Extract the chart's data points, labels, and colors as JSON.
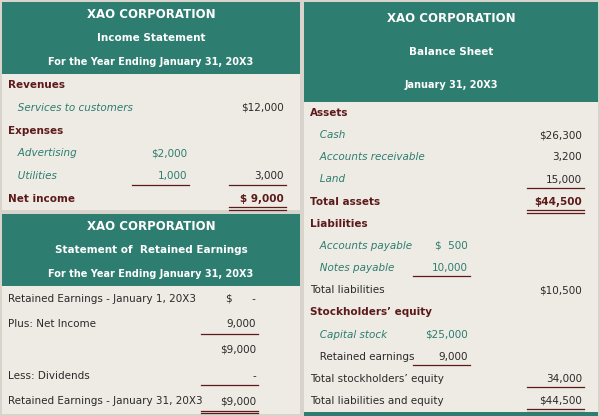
{
  "fig_w": 6.0,
  "fig_h": 4.16,
  "fig_bg": "#d8d4cc",
  "header_bg": "#2d7d70",
  "body_bg": "#eeeae4",
  "bold_col": "#5c1a1a",
  "italic_col": "#2d7d70",
  "normal_col": "#2a2a2a",
  "header_white": "#ffffff",
  "income_statement": {
    "titles": [
      "XAO CORPORATION",
      "Income Statement",
      "For the Year Ending January 31, 20X3"
    ],
    "title_sizes": [
      8.5,
      7.5,
      7.0
    ],
    "rows": [
      {
        "label": "Revenues",
        "c1": "",
        "c2": "",
        "style": "bold"
      },
      {
        "label": "   Services to customers",
        "c1": "",
        "c2": "$12,000",
        "style": "italic"
      },
      {
        "label": "Expenses",
        "c1": "",
        "c2": "",
        "style": "bold"
      },
      {
        "label": "   Advertising",
        "c1": "$2,000",
        "c2": "",
        "style": "italic"
      },
      {
        "label": "   Utilities",
        "c1": "1,000",
        "c2": "3,000",
        "style": "italic",
        "ul_c1": true,
        "ul_c2": true
      },
      {
        "label": "Net income",
        "c1": "",
        "c2": "$ 9,000",
        "style": "bold",
        "dul_c2": true
      }
    ]
  },
  "retained_earnings": {
    "titles": [
      "XAO CORPORATION",
      "Statement of  Retained Earnings",
      "For the Year Ending January 31, 20X3"
    ],
    "title_sizes": [
      8.5,
      7.5,
      7.0
    ],
    "rows": [
      {
        "label": "Retained Earnings - January 1, 20X3",
        "c1": "$      -",
        "c2": "",
        "style": "normal"
      },
      {
        "label": "Plus: Net Income",
        "c1": "9,000",
        "c2": "",
        "style": "normal",
        "ul_c1": true
      },
      {
        "label": "",
        "c1": "$9,000",
        "c2": "",
        "style": "normal"
      },
      {
        "label": "Less: Dividends",
        "c1": "-",
        "c2": "",
        "style": "normal",
        "ul_c1": true
      },
      {
        "label": "Retained Earnings - January 31, 20X3",
        "c1": "$9,000",
        "c2": "",
        "style": "normal",
        "dul_c1": true
      }
    ]
  },
  "balance_sheet": {
    "titles": [
      "XAO CORPORATION",
      "Balance Sheet",
      "January 31, 20X3"
    ],
    "title_sizes": [
      8.5,
      7.5,
      7.0
    ],
    "rows": [
      {
        "label": "Assets",
        "c1": "",
        "c2": "",
        "style": "bold"
      },
      {
        "label": "   Cash",
        "c1": "",
        "c2": "$26,300",
        "style": "italic"
      },
      {
        "label": "   Accounts receivable",
        "c1": "",
        "c2": "3,200",
        "style": "italic"
      },
      {
        "label": "   Land",
        "c1": "",
        "c2": "15,000",
        "style": "italic",
        "ul_c2": true
      },
      {
        "label": "Total assets",
        "c1": "",
        "c2": "$44,500",
        "style": "bold",
        "dul_c2": true
      },
      {
        "label": "Liabilities",
        "c1": "",
        "c2": "",
        "style": "bold"
      },
      {
        "label": "   Accounts payable",
        "c1": "$  500",
        "c2": "",
        "style": "italic"
      },
      {
        "label": "   Notes payable",
        "c1": "10,000",
        "c2": "",
        "style": "italic",
        "ul_c1": true
      },
      {
        "label": "Total liabilities",
        "c1": "",
        "c2": "$10,500",
        "style": "normal"
      },
      {
        "label": "Stockholders’ equity",
        "c1": "",
        "c2": "",
        "style": "bold"
      },
      {
        "label": "   Capital stock",
        "c1": "$25,000",
        "c2": "",
        "style": "italic"
      },
      {
        "label": "   Retained earnings",
        "c1": "9,000",
        "c2": "",
        "style": "normal",
        "ul_c1": true
      },
      {
        "label": "Total stockholders’ equity",
        "c1": "",
        "c2": "34,000",
        "style": "normal",
        "ul_c2": true
      },
      {
        "label": "Total liabilities and equity",
        "c1": "",
        "c2": "$44,500",
        "style": "normal",
        "dul_c2": true
      }
    ]
  }
}
